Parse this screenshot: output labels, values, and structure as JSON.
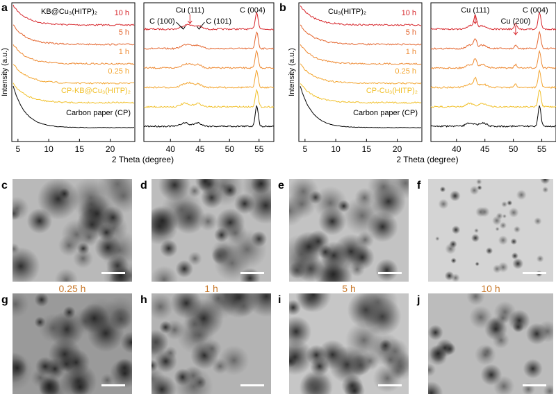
{
  "figure": {
    "panel_letters": [
      "a",
      "b",
      "c",
      "d",
      "e",
      "f",
      "g",
      "h",
      "i",
      "j"
    ],
    "x_axis_label": "2 Theta (degree)",
    "y_axis_label": "Intensity (a.u.)",
    "colors": {
      "10h": "#d7262b",
      "5h": "#e4662f",
      "1h": "#ee8a33",
      "0.25h": "#f3a52f",
      "cp_mof": "#f1c02a",
      "cp": "#000000",
      "time_label": "#c8782a",
      "annotation_red": "#d7262b"
    }
  },
  "chart_data": [
    {
      "panel": "a",
      "type": "line",
      "title": "KB@Cu₃(HITP)₂",
      "xlabel": "2 Theta (degree)",
      "ylabel": "Intensity (a.u.)",
      "left_xlim": [
        4,
        24
      ],
      "left_xticks": [
        5,
        10,
        15,
        20
      ],
      "right_xlim": [
        35.5,
        57.5
      ],
      "right_xticks": [
        40,
        45,
        50,
        55
      ],
      "series": [
        {
          "name": "10 h",
          "color": "#d7262b"
        },
        {
          "name": "5 h",
          "color": "#e4662f"
        },
        {
          "name": "1 h",
          "color": "#ee8a33"
        },
        {
          "name": "0.25 h",
          "color": "#f3a52f"
        },
        {
          "name": "CP-KB@Cu₃(HITP)₂",
          "color": "#f1c02a"
        },
        {
          "name": "Carbon paper (CP)",
          "color": "#000000"
        }
      ],
      "annotations": [
        {
          "text": "Cu (111)",
          "x": 43.3,
          "color": "#d7262b"
        },
        {
          "text": "C (100)",
          "x": 42.4,
          "color": "#000000"
        },
        {
          "text": "C (101)",
          "x": 44.6,
          "color": "#000000"
        },
        {
          "text": "C (004)",
          "x": 54.6,
          "color": "#000000"
        }
      ]
    },
    {
      "panel": "b",
      "type": "line",
      "title": "Cu₃(HITP)₂",
      "xlabel": "2 Theta (degree)",
      "ylabel": "Intensity (a.u.)",
      "left_xlim": [
        4,
        24
      ],
      "left_xticks": [
        5,
        10,
        15,
        20
      ],
      "right_xlim": [
        35.5,
        57.5
      ],
      "right_xticks": [
        40,
        45,
        50,
        55
      ],
      "series": [
        {
          "name": "10 h",
          "color": "#d7262b"
        },
        {
          "name": "5 h",
          "color": "#e4662f"
        },
        {
          "name": "1 h",
          "color": "#ee8a33"
        },
        {
          "name": "0.25 h",
          "color": "#f3a52f"
        },
        {
          "name": "CP-Cu₃(HITP)₂",
          "color": "#f1c02a"
        },
        {
          "name": "Carbon paper (CP)",
          "color": "#000000"
        }
      ],
      "annotations": [
        {
          "text": "Cu (111)",
          "x": 43.3,
          "color": "#d7262b"
        },
        {
          "text": "Cu (200)",
          "x": 50.4,
          "color": "#d7262b"
        },
        {
          "text": "C (004)",
          "x": 54.6,
          "color": "#000000"
        }
      ]
    }
  ],
  "tem_panels": [
    {
      "letter": "c",
      "time": "0.25 h"
    },
    {
      "letter": "d",
      "time": "1 h"
    },
    {
      "letter": "e",
      "time": "5 h"
    },
    {
      "letter": "f",
      "time": "10 h"
    },
    {
      "letter": "g"
    },
    {
      "letter": "h"
    },
    {
      "letter": "i"
    },
    {
      "letter": "j"
    }
  ]
}
